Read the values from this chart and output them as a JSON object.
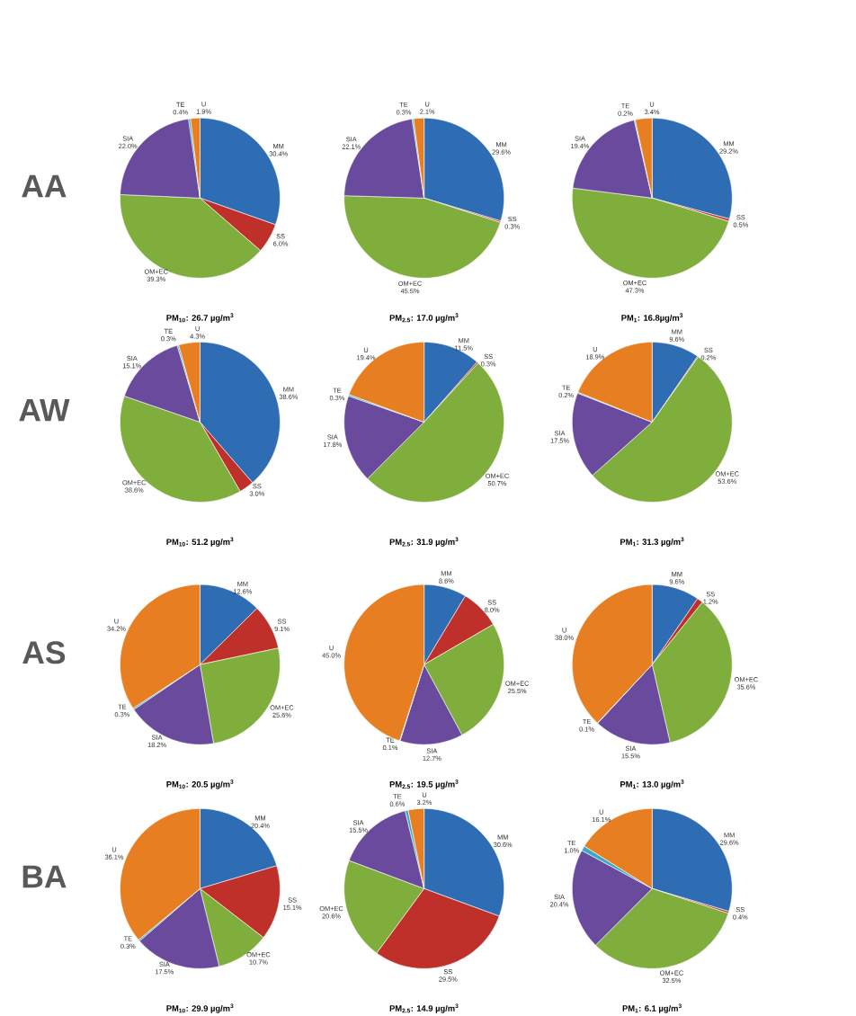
{
  "chart_data": [
    {
      "type": "pie",
      "title": "PM$_{10}$: 26.7 µg/m$^{3}$",
      "annotations": [
        "AA"
      ],
      "categories": [
        "MM",
        "SS",
        "OM+EC",
        "SIA",
        "TE",
        "U"
      ],
      "values": [
        30.4,
        6.0,
        39.3,
        22.0,
        0.4,
        1.9
      ],
      "value_labels": [
        "30.4%",
        "6.0%",
        "39.3%",
        "22.0%",
        "0.4%",
        "1.9%"
      ],
      "colors": [
        "#2e6db4",
        "#c0302a",
        "#7fae3c",
        "#6a4a9c",
        "#3aa8c8",
        "#e87e22"
      ]
    },
    {
      "type": "pie",
      "title": "PM$_{2.5}$: 17.0 µg/m$^{3}$",
      "categories": [
        "MM",
        "SS",
        "OM+EC",
        "SIA",
        "TE",
        "U"
      ],
      "values": [
        29.6,
        0.3,
        45.5,
        22.1,
        0.3,
        2.1
      ],
      "value_labels": [
        "29.6%",
        "0.3%",
        "45.5%",
        "22.1%",
        "0.3%",
        "2.1%"
      ],
      "colors": [
        "#2e6db4",
        "#c0302a",
        "#7fae3c",
        "#6a4a9c",
        "#3aa8c8",
        "#e87e22"
      ]
    },
    {
      "type": "pie",
      "title": "PM$_{1}$: 16.8µg/m$^{3}$",
      "categories": [
        "MM",
        "SS",
        "OM+EC",
        "SIA",
        "TE",
        "U"
      ],
      "values": [
        29.2,
        0.5,
        47.3,
        19.4,
        0.2,
        3.4
      ],
      "value_labels": [
        "29.2%",
        "0.5%",
        "47.3%",
        "19.4%",
        "0.2%",
        "3.4%"
      ],
      "colors": [
        "#2e6db4",
        "#c0302a",
        "#7fae3c",
        "#6a4a9c",
        "#3aa8c8",
        "#e87e22"
      ]
    },
    {
      "type": "pie",
      "title": "PM$_{10}$: 51.2 µg/m$^{3}$",
      "annotations": [
        "AW"
      ],
      "categories": [
        "MM",
        "SS",
        "OM+EC",
        "SIA",
        "TE",
        "U"
      ],
      "values": [
        38.6,
        3.0,
        38.6,
        15.1,
        0.3,
        4.3
      ],
      "value_labels": [
        "38.6%",
        "3.0%",
        "38.6%",
        "15.1%",
        "0.3%",
        "4.3%"
      ],
      "colors": [
        "#2e6db4",
        "#c0302a",
        "#7fae3c",
        "#6a4a9c",
        "#3aa8c8",
        "#e87e22"
      ]
    },
    {
      "type": "pie",
      "title": "PM$_{2.5}$: 31.9 µg/m$^{3}$",
      "categories": [
        "MM",
        "SS",
        "OM+EC",
        "SIA",
        "TE",
        "U"
      ],
      "values": [
        11.5,
        0.3,
        50.7,
        17.8,
        0.3,
        19.4
      ],
      "value_labels": [
        "11.5%",
        "0.3%",
        "50.7%",
        "17.8%",
        "0.3%",
        "19.4%"
      ],
      "colors": [
        "#2e6db4",
        "#c0302a",
        "#7fae3c",
        "#6a4a9c",
        "#3aa8c8",
        "#e87e22"
      ]
    },
    {
      "type": "pie",
      "title": "PM$_{1}$: 31.3 µg/m$^{3}$",
      "categories": [
        "MM",
        "SS",
        "OM+EC",
        "SIA",
        "TE",
        "U"
      ],
      "values": [
        9.6,
        0.2,
        53.6,
        17.5,
        0.2,
        18.9
      ],
      "value_labels": [
        "9.6%",
        "0.2%",
        "53.6%",
        "17.5%",
        "0.2%",
        "18.9%"
      ],
      "colors": [
        "#2e6db4",
        "#c0302a",
        "#7fae3c",
        "#6a4a9c",
        "#3aa8c8",
        "#e87e22"
      ]
    },
    {
      "type": "pie",
      "title": "PM$_{10}$: 20.5 µg/m$^{3}$",
      "annotations": [
        "AS"
      ],
      "categories": [
        "MM",
        "SS",
        "OM+EC",
        "SIA",
        "TE",
        "U"
      ],
      "values": [
        12.6,
        9.1,
        25.6,
        18.2,
        0.3,
        34.2
      ],
      "value_labels": [
        "12.6%",
        "9.1%",
        "25.6%",
        "18.2%",
        "0.3%",
        "34.2%"
      ],
      "colors": [
        "#2e6db4",
        "#c0302a",
        "#7fae3c",
        "#6a4a9c",
        "#3aa8c8",
        "#e87e22"
      ]
    },
    {
      "type": "pie",
      "title": "PM$_{2.5}$: 19.5 µg/m$^{3}$",
      "categories": [
        "MM",
        "SS",
        "OM+EC",
        "SIA",
        "TE",
        "U"
      ],
      "values": [
        8.6,
        8.0,
        25.5,
        12.7,
        0.1,
        45.0
      ],
      "value_labels": [
        "8.6%",
        "8.0%",
        "25.5%",
        "12.7%",
        "0.1%",
        "45.0%"
      ],
      "colors": [
        "#2e6db4",
        "#c0302a",
        "#7fae3c",
        "#6a4a9c",
        "#3aa8c8",
        "#e87e22"
      ]
    },
    {
      "type": "pie",
      "title": "PM$_{1}$: 13.0 µg/m$^{3}$",
      "categories": [
        "MM",
        "SS",
        "OM+EC",
        "SIA",
        "TE",
        "U"
      ],
      "values": [
        9.6,
        1.2,
        35.6,
        15.5,
        0.1,
        38.0
      ],
      "value_labels": [
        "9.6%",
        "1.2%",
        "35.6%",
        "15.5%",
        "0.1%",
        "38.0%"
      ],
      "colors": [
        "#2e6db4",
        "#c0302a",
        "#7fae3c",
        "#6a4a9c",
        "#3aa8c8",
        "#e87e22"
      ]
    },
    {
      "type": "pie",
      "title": "PM$_{10}$: 29.9 µg/m$^{3}$",
      "annotations": [
        "BA"
      ],
      "categories": [
        "MM",
        "SS",
        "OM+EC",
        "SIA",
        "TE",
        "U"
      ],
      "values": [
        20.4,
        15.1,
        10.7,
        17.5,
        0.3,
        36.1
      ],
      "value_labels": [
        "20.4%",
        "15.1%",
        "10.7%",
        "17.5%",
        "0.3%",
        "36.1%"
      ],
      "colors": [
        "#2e6db4",
        "#c0302a",
        "#7fae3c",
        "#6a4a9c",
        "#3aa8c8",
        "#e87e22"
      ]
    },
    {
      "type": "pie",
      "title": "PM$_{2.5}$: 14.9 µg/m$^{3}$",
      "categories": [
        "MM",
        "SS",
        "OM+EC",
        "SIA",
        "TE",
        "U"
      ],
      "values": [
        30.6,
        29.5,
        20.6,
        15.5,
        0.6,
        3.2
      ],
      "value_labels": [
        "30.6%",
        "29.5%",
        "20.6%",
        "15.5%",
        "0.6%",
        "3.2%"
      ],
      "colors": [
        "#2e6db4",
        "#c0302a",
        "#7fae3c",
        "#6a4a9c",
        "#3aa8c8",
        "#e87e22"
      ]
    },
    {
      "type": "pie",
      "title": "PM$_{1}$: 6.1 µg/m$^{3}$",
      "categories": [
        "MM",
        "SS",
        "OM+EC",
        "SIA",
        "TE",
        "U"
      ],
      "values": [
        29.6,
        0.4,
        32.5,
        20.4,
        1.0,
        16.1
      ],
      "value_labels": [
        "29.6%",
        "0.4%",
        "32.5%",
        "20.4%",
        "1.0%",
        "16.1%"
      ],
      "colors": [
        "#2e6db4",
        "#c0302a",
        "#7fae3c",
        "#6a4a9c",
        "#3aa8c8",
        "#e87e22"
      ]
    }
  ]
}
